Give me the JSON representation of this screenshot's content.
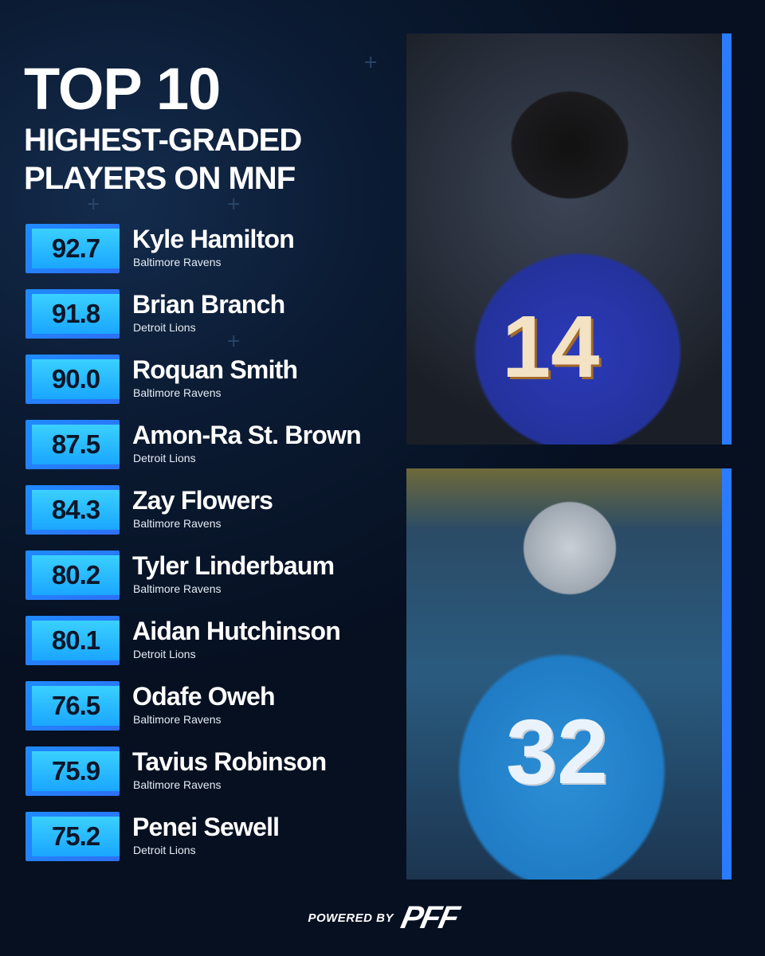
{
  "title": {
    "line1": "TOP 10",
    "line2": "HIGHEST-GRADED",
    "line3": "PLAYERS ON MNF"
  },
  "players": [
    {
      "grade": "92.7",
      "name": "Kyle Hamilton",
      "team": "Baltimore Ravens"
    },
    {
      "grade": "91.8",
      "name": "Brian Branch",
      "team": "Detroit Lions"
    },
    {
      "grade": "90.0",
      "name": "Roquan Smith",
      "team": "Baltimore Ravens"
    },
    {
      "grade": "87.5",
      "name": "Amon-Ra St. Brown",
      "team": "Detroit Lions"
    },
    {
      "grade": "84.3",
      "name": "Zay Flowers",
      "team": "Baltimore Ravens"
    },
    {
      "grade": "80.2",
      "name": "Tyler Linderbaum",
      "team": "Baltimore Ravens"
    },
    {
      "grade": "80.1",
      "name": "Aidan Hutchinson",
      "team": "Detroit Lions"
    },
    {
      "grade": "76.5",
      "name": "Odafe Oweh",
      "team": "Baltimore Ravens"
    },
    {
      "grade": "75.9",
      "name": "Tavius Robinson",
      "team": "Baltimore Ravens"
    },
    {
      "grade": "75.2",
      "name": "Penei Sewell",
      "team": "Detroit Lions"
    }
  ],
  "photos": {
    "top": {
      "jersey_number": "14"
    },
    "bottom": {
      "jersey_number": "32"
    }
  },
  "footer": {
    "powered_by": "POWERED BY",
    "logo": "PFF"
  },
  "colors": {
    "background": "#0b1b33",
    "accent": "#2a7bff",
    "grade_box": "#1aa6ff"
  }
}
